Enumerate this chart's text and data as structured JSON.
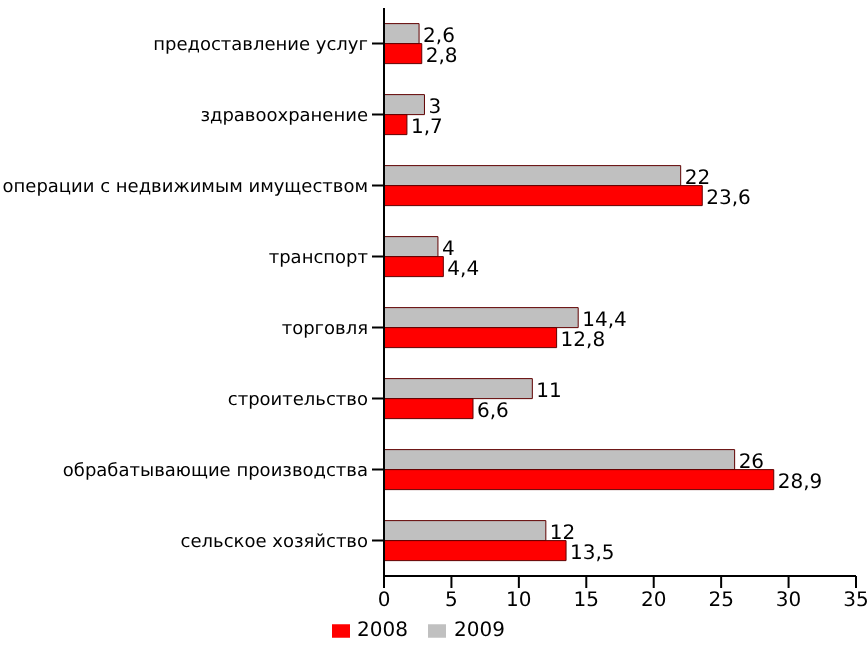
{
  "chart_data": {
    "type": "bar",
    "orientation": "horizontal",
    "categories": [
      "предоставление услуг",
      "здравоохранение",
      "операции с недвижимым имуществом",
      "транспорт",
      "торговля",
      "строительство",
      "обрабатывающие производства",
      "сельское хозяйство"
    ],
    "series": [
      {
        "name": "2008",
        "color": "#ff0000",
        "values": [
          2.8,
          1.7,
          23.6,
          4.4,
          12.8,
          6.6,
          28.9,
          13.5
        ],
        "value_labels": [
          "2,8",
          "1,7",
          "23,6",
          "4,4",
          "12,8",
          "6,6",
          "28,9",
          "13,5"
        ]
      },
      {
        "name": "2009",
        "color": "#c0c0c0",
        "values": [
          2.6,
          3,
          22,
          4,
          14.4,
          11,
          26,
          12
        ],
        "value_labels": [
          "2,6",
          "3",
          "22",
          "4",
          "14,4",
          "11",
          "26",
          "12"
        ]
      }
    ],
    "xlim": [
      0,
      35
    ],
    "xticks": [
      0,
      5,
      10,
      15,
      20,
      25,
      30,
      35
    ],
    "grid": false,
    "legend": "bottom"
  }
}
